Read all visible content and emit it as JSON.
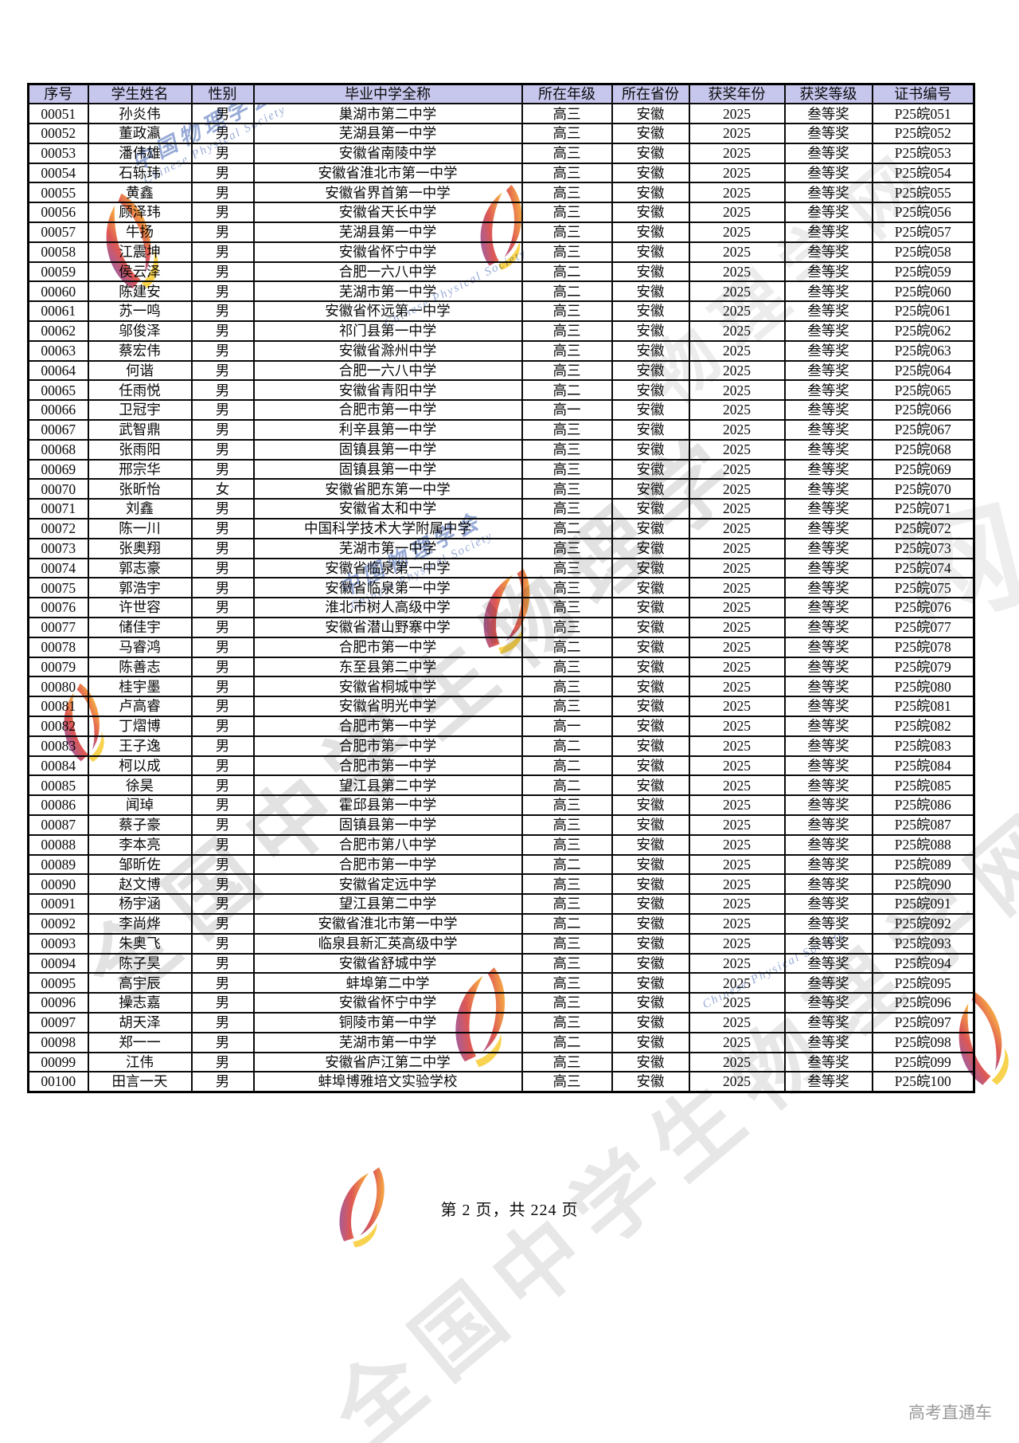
{
  "table": {
    "header_bg": "#c7c7ee",
    "border_color": "#000000",
    "columns": [
      "序号",
      "学生姓名",
      "性别",
      "毕业中学全称",
      "所在年级",
      "所在省份",
      "获奖年份",
      "获奖等级",
      "证书编号"
    ],
    "rows": [
      [
        "00051",
        "孙炎伟",
        "男",
        "巢湖市第二中学",
        "高三",
        "安徽",
        "2025",
        "叁等奖",
        "P25皖051"
      ],
      [
        "00052",
        "董政瀛",
        "男",
        "芜湖县第一中学",
        "高三",
        "安徽",
        "2025",
        "叁等奖",
        "P25皖052"
      ],
      [
        "00053",
        "潘伟雄",
        "男",
        "安徽省南陵中学",
        "高三",
        "安徽",
        "2025",
        "叁等奖",
        "P25皖053"
      ],
      [
        "00054",
        "石轹玮",
        "男",
        "安徽省淮北市第一中学",
        "高三",
        "安徽",
        "2025",
        "叁等奖",
        "P25皖054"
      ],
      [
        "00055",
        "黄鑫",
        "男",
        "安徽省界首第一中学",
        "高三",
        "安徽",
        "2025",
        "叁等奖",
        "P25皖055"
      ],
      [
        "00056",
        "顾泽玮",
        "男",
        "安徽省天长中学",
        "高三",
        "安徽",
        "2025",
        "叁等奖",
        "P25皖056"
      ],
      [
        "00057",
        "牛扬",
        "男",
        "芜湖县第一中学",
        "高三",
        "安徽",
        "2025",
        "叁等奖",
        "P25皖057"
      ],
      [
        "00058",
        "江震坤",
        "男",
        "安徽省怀宁中学",
        "高三",
        "安徽",
        "2025",
        "叁等奖",
        "P25皖058"
      ],
      [
        "00059",
        "侯云泽",
        "男",
        "合肥一六八中学",
        "高二",
        "安徽",
        "2025",
        "叁等奖",
        "P25皖059"
      ],
      [
        "00060",
        "陈建安",
        "男",
        "芜湖市第一中学",
        "高二",
        "安徽",
        "2025",
        "叁等奖",
        "P25皖060"
      ],
      [
        "00061",
        "苏一鸣",
        "男",
        "安徽省怀远第一中学",
        "高三",
        "安徽",
        "2025",
        "叁等奖",
        "P25皖061"
      ],
      [
        "00062",
        "邬俊泽",
        "男",
        "祁门县第一中学",
        "高三",
        "安徽",
        "2025",
        "叁等奖",
        "P25皖062"
      ],
      [
        "00063",
        "蔡宏伟",
        "男",
        "安徽省滁州中学",
        "高三",
        "安徽",
        "2025",
        "叁等奖",
        "P25皖063"
      ],
      [
        "00064",
        "何谐",
        "男",
        "合肥一六八中学",
        "高三",
        "安徽",
        "2025",
        "叁等奖",
        "P25皖064"
      ],
      [
        "00065",
        "任雨悦",
        "男",
        "安徽省青阳中学",
        "高二",
        "安徽",
        "2025",
        "叁等奖",
        "P25皖065"
      ],
      [
        "00066",
        "卫冠宇",
        "男",
        "合肥市第一中学",
        "高一",
        "安徽",
        "2025",
        "叁等奖",
        "P25皖066"
      ],
      [
        "00067",
        "武智鼎",
        "男",
        "利辛县第一中学",
        "高三",
        "安徽",
        "2025",
        "叁等奖",
        "P25皖067"
      ],
      [
        "00068",
        "张雨阳",
        "男",
        "固镇县第一中学",
        "高三",
        "安徽",
        "2025",
        "叁等奖",
        "P25皖068"
      ],
      [
        "00069",
        "邢宗华",
        "男",
        "固镇县第一中学",
        "高三",
        "安徽",
        "2025",
        "叁等奖",
        "P25皖069"
      ],
      [
        "00070",
        "张昕怡",
        "女",
        "安徽省肥东第一中学",
        "高三",
        "安徽",
        "2025",
        "叁等奖",
        "P25皖070"
      ],
      [
        "00071",
        "刘鑫",
        "男",
        "安徽省太和中学",
        "高三",
        "安徽",
        "2025",
        "叁等奖",
        "P25皖071"
      ],
      [
        "00072",
        "陈一川",
        "男",
        "中国科学技术大学附属中学",
        "高二",
        "安徽",
        "2025",
        "叁等奖",
        "P25皖072"
      ],
      [
        "00073",
        "张奥翔",
        "男",
        "芜湖市第一中学",
        "高三",
        "安徽",
        "2025",
        "叁等奖",
        "P25皖073"
      ],
      [
        "00074",
        "郭志豪",
        "男",
        "安徽省临泉第一中学",
        "高三",
        "安徽",
        "2025",
        "叁等奖",
        "P25皖074"
      ],
      [
        "00075",
        "郭浩宇",
        "男",
        "安徽省临泉第一中学",
        "高三",
        "安徽",
        "2025",
        "叁等奖",
        "P25皖075"
      ],
      [
        "00076",
        "许世容",
        "男",
        "淮北市树人高级中学",
        "高三",
        "安徽",
        "2025",
        "叁等奖",
        "P25皖076"
      ],
      [
        "00077",
        "储佳宇",
        "男",
        "安徽省潜山野寨中学",
        "高三",
        "安徽",
        "2025",
        "叁等奖",
        "P25皖077"
      ],
      [
        "00078",
        "马睿鸿",
        "男",
        "合肥市第一中学",
        "高二",
        "安徽",
        "2025",
        "叁等奖",
        "P25皖078"
      ],
      [
        "00079",
        "陈善志",
        "男",
        "东至县第二中学",
        "高三",
        "安徽",
        "2025",
        "叁等奖",
        "P25皖079"
      ],
      [
        "00080",
        "桂宇墨",
        "男",
        "安徽省桐城中学",
        "高三",
        "安徽",
        "2025",
        "叁等奖",
        "P25皖080"
      ],
      [
        "00081",
        "卢高睿",
        "男",
        "安徽省明光中学",
        "高三",
        "安徽",
        "2025",
        "叁等奖",
        "P25皖081"
      ],
      [
        "00082",
        "丁熠博",
        "男",
        "合肥市第一中学",
        "高一",
        "安徽",
        "2025",
        "叁等奖",
        "P25皖082"
      ],
      [
        "00083",
        "王子逸",
        "男",
        "合肥市第一中学",
        "高二",
        "安徽",
        "2025",
        "叁等奖",
        "P25皖083"
      ],
      [
        "00084",
        "柯以成",
        "男",
        "合肥市第一中学",
        "高二",
        "安徽",
        "2025",
        "叁等奖",
        "P25皖084"
      ],
      [
        "00085",
        "徐昊",
        "男",
        "望江县第二中学",
        "高二",
        "安徽",
        "2025",
        "叁等奖",
        "P25皖085"
      ],
      [
        "00086",
        "闻琸",
        "男",
        "霍邱县第一中学",
        "高三",
        "安徽",
        "2025",
        "叁等奖",
        "P25皖086"
      ],
      [
        "00087",
        "蔡子豪",
        "男",
        "固镇县第一中学",
        "高三",
        "安徽",
        "2025",
        "叁等奖",
        "P25皖087"
      ],
      [
        "00088",
        "李本亮",
        "男",
        "合肥市第八中学",
        "高三",
        "安徽",
        "2025",
        "叁等奖",
        "P25皖088"
      ],
      [
        "00089",
        "邹昕佐",
        "男",
        "合肥市第一中学",
        "高二",
        "安徽",
        "2025",
        "叁等奖",
        "P25皖089"
      ],
      [
        "00090",
        "赵文博",
        "男",
        "安徽省定远中学",
        "高三",
        "安徽",
        "2025",
        "叁等奖",
        "P25皖090"
      ],
      [
        "00091",
        "杨宇涵",
        "男",
        "望江县第二中学",
        "高三",
        "安徽",
        "2025",
        "叁等奖",
        "P25皖091"
      ],
      [
        "00092",
        "李尚烨",
        "男",
        "安徽省淮北市第一中学",
        "高二",
        "安徽",
        "2025",
        "叁等奖",
        "P25皖092"
      ],
      [
        "00093",
        "朱奥飞",
        "男",
        "临泉县新汇英高级中学",
        "高三",
        "安徽",
        "2025",
        "叁等奖",
        "P25皖093"
      ],
      [
        "00094",
        "陈子昊",
        "男",
        "安徽省舒城中学",
        "高三",
        "安徽",
        "2025",
        "叁等奖",
        "P25皖094"
      ],
      [
        "00095",
        "高宇辰",
        "男",
        "蚌埠第二中学",
        "高三",
        "安徽",
        "2025",
        "叁等奖",
        "P25皖095"
      ],
      [
        "00096",
        "操志嘉",
        "男",
        "安徽省怀宁中学",
        "高三",
        "安徽",
        "2025",
        "叁等奖",
        "P25皖096"
      ],
      [
        "00097",
        "胡天泽",
        "男",
        "铜陵市第一中学",
        "高三",
        "安徽",
        "2025",
        "叁等奖",
        "P25皖097"
      ],
      [
        "00098",
        "郑一一",
        "男",
        "芜湖市第一中学",
        "高二",
        "安徽",
        "2025",
        "叁等奖",
        "P25皖098"
      ],
      [
        "00099",
        "江伟",
        "男",
        "安徽省庐江第二中学",
        "高三",
        "安徽",
        "2025",
        "叁等奖",
        "P25皖099"
      ],
      [
        "00100",
        "田言一天",
        "男",
        "蚌埠博雅培文实验学校",
        "高三",
        "安徽",
        "2025",
        "叁等奖",
        "P25皖100"
      ]
    ]
  },
  "footer": {
    "page_text": "第 2 页，共 224 页",
    "brand": "高考直通车"
  },
  "watermarks": {
    "big_text_1": "全国中学生物理学",
    "big_text_2": "全国中学生物理学网",
    "big_text_3": "物理学网",
    "outline_char": "网",
    "script_cn": "中国物理学会",
    "script_en": "Chinese Physical Society",
    "logo_colors": [
      "#6a3fb5",
      "#d6322e",
      "#f08a1d",
      "#f7c928"
    ]
  }
}
